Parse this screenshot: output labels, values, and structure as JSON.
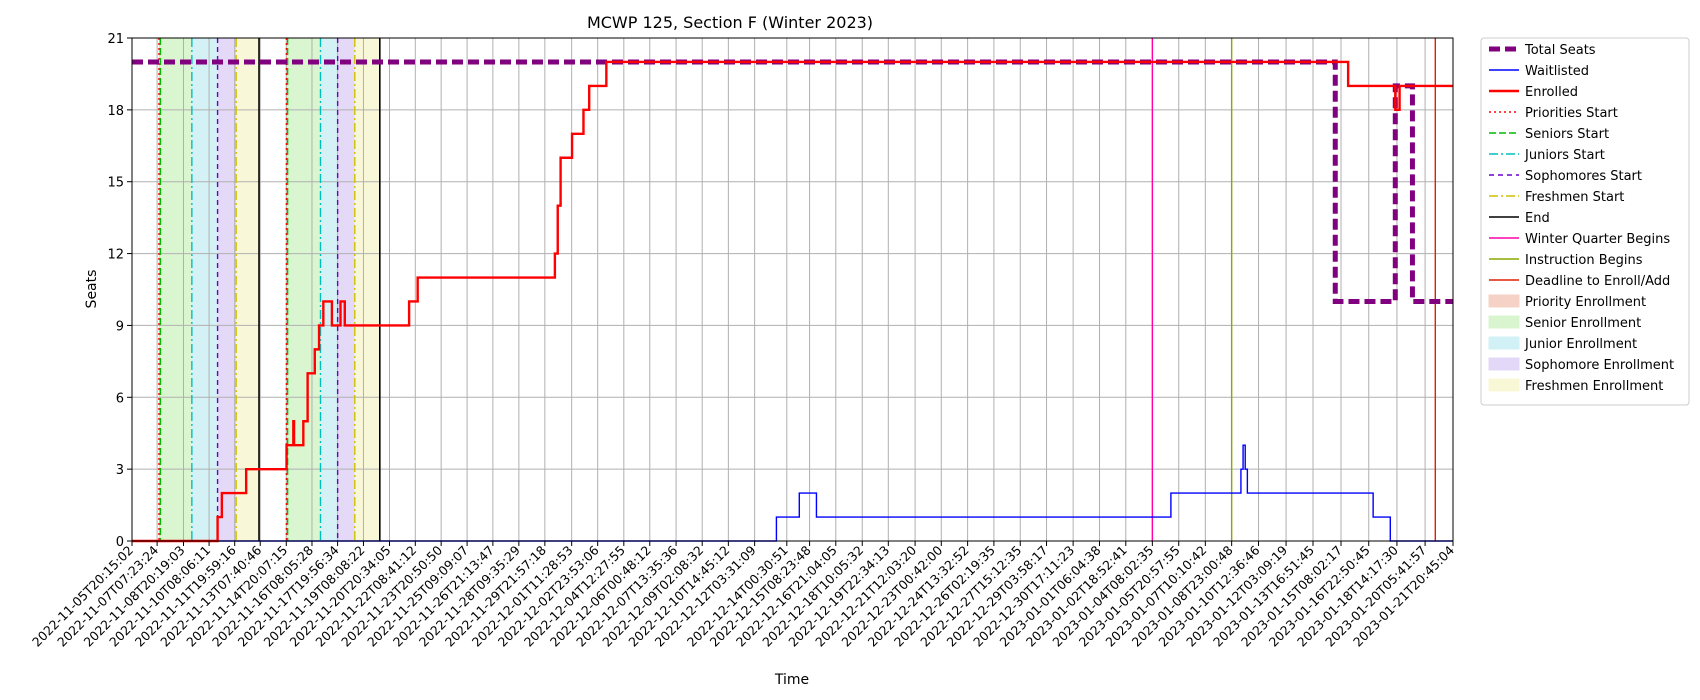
{
  "chart_data": {
    "type": "line",
    "title": "MCWP 125, Section F (Winter 2023)",
    "xlabel": "Time",
    "ylabel": "Seats",
    "x_type": "datetime",
    "xlim": [
      "2022-11-05T20:15:02",
      "2023-01-21T20:45:04"
    ],
    "ylim": [
      0,
      21
    ],
    "yticks": [
      0,
      3,
      6,
      9,
      12,
      15,
      18,
      21
    ],
    "xticks": [
      "2022-11-05T20:15:02",
      "2022-11-07T07:23:24",
      "2022-11-08T20:19:03",
      "2022-11-10T08:06:11",
      "2022-11-11T19:59:16",
      "2022-11-13T07:40:46",
      "2022-11-14T20:07:15",
      "2022-11-16T08:05:28",
      "2022-11-17T19:56:34",
      "2022-11-19T08:08:22",
      "2022-11-20T20:34:05",
      "2022-11-22T08:41:12",
      "2022-11-23T20:50:50",
      "2022-11-25T09:09:07",
      "2022-11-26T21:13:47",
      "2022-11-28T09:35:29",
      "2022-11-29T21:57:18",
      "2022-12-01T11:28:53",
      "2022-12-02T23:53:06",
      "2022-12-04T12:27:55",
      "2022-12-06T00:48:12",
      "2022-12-07T13:35:36",
      "2022-12-09T02:08:32",
      "2022-12-10T14:45:12",
      "2022-12-12T03:31:09",
      "2022-12-14T00:30:51",
      "2022-12-15T08:23:48",
      "2022-12-16T21:04:05",
      "2022-12-18T10:05:32",
      "2022-12-19T22:34:13",
      "2022-12-21T12:03:20",
      "2022-12-23T00:42:00",
      "2022-12-24T13:32:52",
      "2022-12-26T02:19:35",
      "2022-12-27T15:12:35",
      "2022-12-29T03:58:17",
      "2022-12-30T17:11:23",
      "2023-01-01T06:04:38",
      "2023-01-02T18:52:41",
      "2023-01-04T08:02:35",
      "2023-01-05T20:57:55",
      "2023-01-07T10:10:42",
      "2023-01-08T23:00:48",
      "2023-01-10T12:36:46",
      "2023-01-12T03:09:19",
      "2023-01-13T16:51:45",
      "2023-01-15T08:02:17",
      "2023-01-16T22:50:45",
      "2023-01-18T14:17:30",
      "2023-01-20T05:41:57",
      "2023-01-21T20:45:04"
    ],
    "grid": true,
    "legend": "outside-right",
    "series": [
      {
        "name": "Total Seats",
        "color": "#800080",
        "style": "dashed-thick",
        "points": [
          [
            "2022-11-05T20:15:02",
            20
          ],
          [
            "2023-01-15T00:00:00",
            20
          ],
          [
            "2023-01-15T00:00:00",
            10
          ],
          [
            "2023-01-18T12:00:00",
            10
          ],
          [
            "2023-01-18T12:00:00",
            19
          ],
          [
            "2023-01-19T12:00:00",
            19
          ],
          [
            "2023-01-19T12:00:00",
            10
          ],
          [
            "2023-01-21T20:45:04",
            10
          ]
        ]
      },
      {
        "name": "Waitlisted",
        "color": "#0000ff",
        "style": "solid-thin",
        "points": [
          [
            "2022-11-05T20:15:02",
            0
          ],
          [
            "2022-12-13T10:00:00",
            0
          ],
          [
            "2022-12-13T10:00:00",
            1
          ],
          [
            "2022-12-14T18:00:00",
            1
          ],
          [
            "2022-12-14T18:00:00",
            2
          ],
          [
            "2022-12-15T18:00:00",
            2
          ],
          [
            "2022-12-15T18:00:00",
            1
          ],
          [
            "2023-01-05T10:00:00",
            1
          ],
          [
            "2023-01-05T10:00:00",
            2
          ],
          [
            "2023-01-09T12:00:00",
            2
          ],
          [
            "2023-01-09T12:00:00",
            3
          ],
          [
            "2023-01-09T15:00:00",
            3
          ],
          [
            "2023-01-09T15:00:00",
            4
          ],
          [
            "2023-01-09T18:00:00",
            4
          ],
          [
            "2023-01-09T18:00:00",
            3
          ],
          [
            "2023-01-09T21:00:00",
            3
          ],
          [
            "2023-01-09T21:00:00",
            2
          ],
          [
            "2023-01-15T00:00:00",
            2
          ],
          [
            "2023-01-15T00:00:00",
            2
          ],
          [
            "2023-01-17T05:00:00",
            2
          ],
          [
            "2023-01-17T05:00:00",
            1
          ],
          [
            "2023-01-18T05:00:00",
            1
          ],
          [
            "2023-01-18T05:00:00",
            0
          ],
          [
            "2023-01-21T20:45:04",
            0
          ]
        ]
      },
      {
        "name": "Enrolled",
        "color": "#ff0000",
        "style": "solid-thick",
        "points": [
          [
            "2022-11-05T20:15:02",
            0
          ],
          [
            "2022-11-10T20:00:00",
            0
          ],
          [
            "2022-11-10T20:00:00",
            1
          ],
          [
            "2022-11-11T02:00:00",
            1
          ],
          [
            "2022-11-11T02:00:00",
            2
          ],
          [
            "2022-11-12T12:00:00",
            2
          ],
          [
            "2022-11-12T12:00:00",
            3
          ],
          [
            "2022-11-14T20:30:00",
            3
          ],
          [
            "2022-11-14T20:30:00",
            4
          ],
          [
            "2022-11-15T06:00:00",
            4
          ],
          [
            "2022-11-15T06:00:00",
            5
          ],
          [
            "2022-11-15T07:00:00",
            5
          ],
          [
            "2022-11-15T07:00:00",
            4
          ],
          [
            "2022-11-15T20:00:00",
            4
          ],
          [
            "2022-11-15T20:00:00",
            5
          ],
          [
            "2022-11-16T02:00:00",
            5
          ],
          [
            "2022-11-16T02:00:00",
            7
          ],
          [
            "2022-11-16T12:00:00",
            7
          ],
          [
            "2022-11-16T12:00:00",
            8
          ],
          [
            "2022-11-16T18:00:00",
            8
          ],
          [
            "2022-11-16T18:00:00",
            9
          ],
          [
            "2022-11-17T00:00:00",
            9
          ],
          [
            "2022-11-17T00:00:00",
            10
          ],
          [
            "2022-11-17T12:00:00",
            10
          ],
          [
            "2022-11-17T12:00:00",
            9
          ],
          [
            "2022-11-18T00:00:00",
            9
          ],
          [
            "2022-11-18T00:00:00",
            10
          ],
          [
            "2022-11-18T06:00:00",
            10
          ],
          [
            "2022-11-18T06:00:00",
            9
          ],
          [
            "2022-11-22T00:00:00",
            9
          ],
          [
            "2022-11-22T00:00:00",
            10
          ],
          [
            "2022-11-22T12:00:00",
            10
          ],
          [
            "2022-11-22T12:00:00",
            11
          ],
          [
            "2022-11-30T12:00:00",
            11
          ],
          [
            "2022-11-30T12:00:00",
            12
          ],
          [
            "2022-11-30T16:00:00",
            12
          ],
          [
            "2022-11-30T16:00:00",
            14
          ],
          [
            "2022-11-30T20:00:00",
            14
          ],
          [
            "2022-11-30T20:00:00",
            16
          ],
          [
            "2022-12-01T12:00:00",
            16
          ],
          [
            "2022-12-01T12:00:00",
            17
          ],
          [
            "2022-12-02T04:00:00",
            17
          ],
          [
            "2022-12-02T04:00:00",
            18
          ],
          [
            "2022-12-02T12:00:00",
            18
          ],
          [
            "2022-12-02T12:00:00",
            19
          ],
          [
            "2022-12-03T12:00:00",
            19
          ],
          [
            "2022-12-03T12:00:00",
            20
          ],
          [
            "2023-01-15T18:00:00",
            20
          ],
          [
            "2023-01-15T18:00:00",
            19
          ],
          [
            "2023-01-18T12:00:00",
            19
          ],
          [
            "2023-01-18T12:00:00",
            18
          ],
          [
            "2023-01-18T18:00:00",
            18
          ],
          [
            "2023-01-18T18:00:00",
            19
          ],
          [
            "2023-01-21T20:45:04",
            19
          ]
        ]
      }
    ],
    "period_starts": [
      {
        "name": "Priorities Start",
        "color": "#ff0000",
        "style": "dotted",
        "x": [
          "2022-11-07T10:00:00",
          "2022-11-14T20:20:00"
        ]
      },
      {
        "name": "Seniors Start",
        "color": "#00bb00",
        "style": "dashed",
        "x": [
          "2022-11-07T12:00:00",
          "2022-11-14T22:00:00"
        ]
      },
      {
        "name": "Juniors Start",
        "color": "#00bfbf",
        "style": "dashdot",
        "x": [
          "2022-11-09T08:00:00",
          "2022-11-16T20:00:00"
        ]
      },
      {
        "name": "Sophomores Start",
        "color": "#6a00d0",
        "style": "densedash",
        "x": [
          "2022-11-10T20:00:00",
          "2022-11-17T20:00:00"
        ]
      },
      {
        "name": "Freshmen Start",
        "color": "#d0c000",
        "style": "dashdot",
        "x": [
          "2022-11-11T22:00:00",
          "2022-11-18T20:00:00"
        ]
      },
      {
        "name": "End",
        "color": "#000000",
        "style": "solid",
        "x": [
          "2022-11-13T06:00:00",
          "2022-11-20T07:00:00"
        ]
      }
    ],
    "events": [
      {
        "name": "Winter Quarter Begins",
        "color": "#ff00aa",
        "x": "2023-01-04T08:02:35"
      },
      {
        "name": "Instruction Begins",
        "color": "#88aa00",
        "x": "2023-01-08T23:00:48"
      },
      {
        "name": "Deadline to Enroll/Add",
        "color": "#dd2200",
        "x": "2023-01-20T20:00:00"
      }
    ],
    "spans": [
      {
        "name": "Priority Enrollment",
        "color": "#f6d2c6",
        "ranges": [
          [
            "2022-11-07T10:00:00",
            "2022-11-07T12:00:00"
          ],
          [
            "2022-11-14T20:20:00",
            "2022-11-14T22:00:00"
          ]
        ]
      },
      {
        "name": "Senior Enrollment",
        "color": "#d8f5cf",
        "ranges": [
          [
            "2022-11-07T12:00:00",
            "2022-11-09T08:00:00"
          ],
          [
            "2022-11-14T22:00:00",
            "2022-11-16T20:00:00"
          ]
        ]
      },
      {
        "name": "Junior Enrollment",
        "color": "#d2f1f6",
        "ranges": [
          [
            "2022-11-09T08:00:00",
            "2022-11-10T20:00:00"
          ],
          [
            "2022-11-16T20:00:00",
            "2022-11-17T20:00:00"
          ]
        ]
      },
      {
        "name": "Sophomore Enrollment",
        "color": "#e3d8f7",
        "ranges": [
          [
            "2022-11-10T20:00:00",
            "2022-11-11T22:00:00"
          ],
          [
            "2022-11-17T20:00:00",
            "2022-11-18T20:00:00"
          ]
        ]
      },
      {
        "name": "Freshmen Enrollment",
        "color": "#f8f8d6",
        "ranges": [
          [
            "2022-11-11T22:00:00",
            "2022-11-13T06:00:00"
          ],
          [
            "2022-11-18T20:00:00",
            "2022-11-20T07:00:00"
          ]
        ]
      }
    ],
    "legend_entries": [
      {
        "label": "Total Seats",
        "kind": "line",
        "color": "#800080",
        "style": "dashed-thick"
      },
      {
        "label": "Waitlisted",
        "kind": "line",
        "color": "#0000ff",
        "style": "solid-thin"
      },
      {
        "label": "Enrolled",
        "kind": "line",
        "color": "#ff0000",
        "style": "solid-thick"
      },
      {
        "label": "Priorities Start",
        "kind": "line",
        "color": "#ff0000",
        "style": "dotted"
      },
      {
        "label": "Seniors Start",
        "kind": "line",
        "color": "#00bb00",
        "style": "dashed"
      },
      {
        "label": "Juniors Start",
        "kind": "line",
        "color": "#00bfbf",
        "style": "dashdot"
      },
      {
        "label": "Sophomores Start",
        "kind": "line",
        "color": "#6a00d0",
        "style": "densedash"
      },
      {
        "label": "Freshmen Start",
        "kind": "line",
        "color": "#d0c000",
        "style": "dashdot"
      },
      {
        "label": "End",
        "kind": "line",
        "color": "#000000",
        "style": "solid"
      },
      {
        "label": "Winter Quarter Begins",
        "kind": "line",
        "color": "#ff00aa",
        "style": "solid"
      },
      {
        "label": "Instruction Begins",
        "kind": "line",
        "color": "#88aa00",
        "style": "solid"
      },
      {
        "label": "Deadline to Enroll/Add",
        "kind": "line",
        "color": "#dd2200",
        "style": "solid"
      },
      {
        "label": "Priority Enrollment",
        "kind": "patch",
        "color": "#f6d2c6"
      },
      {
        "label": "Senior Enrollment",
        "kind": "patch",
        "color": "#d8f5cf"
      },
      {
        "label": "Junior Enrollment",
        "kind": "patch",
        "color": "#d2f1f6"
      },
      {
        "label": "Sophomore Enrollment",
        "kind": "patch",
        "color": "#e3d8f7"
      },
      {
        "label": "Freshmen Enrollment",
        "kind": "patch",
        "color": "#f8f8d6"
      }
    ]
  }
}
